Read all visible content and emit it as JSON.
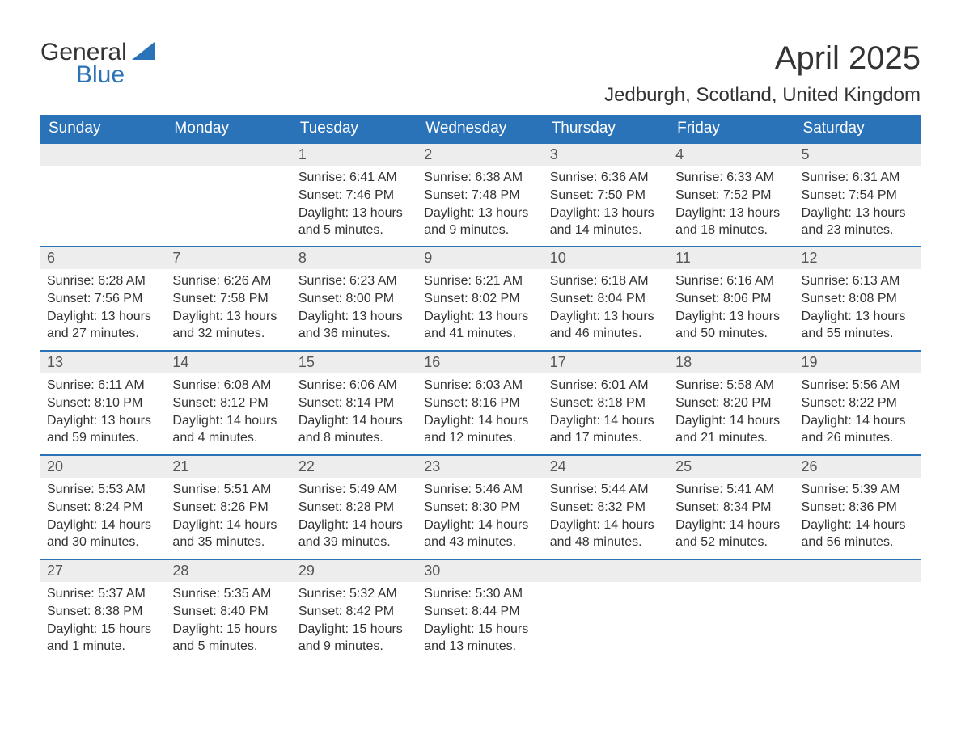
{
  "brand": {
    "line1": "General",
    "line2": "Blue",
    "logo_color": "#2b73b8"
  },
  "title": "April 2025",
  "location": "Jedburgh, Scotland, United Kingdom",
  "colors": {
    "header_bg": "#2b73b8",
    "header_text": "#ffffff",
    "daynum_bg": "#ededed",
    "row_sep": "#2b73b8",
    "body_text": "#333333",
    "page_bg": "#ffffff"
  },
  "fonts": {
    "body_size_pt": 12,
    "title_size_pt": 30,
    "location_size_pt": 18,
    "dayhead_size_pt": 14
  },
  "calendar": {
    "type": "table",
    "columns": [
      "Sunday",
      "Monday",
      "Tuesday",
      "Wednesday",
      "Thursday",
      "Friday",
      "Saturday"
    ],
    "weeks": [
      [
        null,
        null,
        {
          "n": "1",
          "sunrise": "6:41 AM",
          "sunset": "7:46 PM",
          "daylight": "13 hours and 5 minutes."
        },
        {
          "n": "2",
          "sunrise": "6:38 AM",
          "sunset": "7:48 PM",
          "daylight": "13 hours and 9 minutes."
        },
        {
          "n": "3",
          "sunrise": "6:36 AM",
          "sunset": "7:50 PM",
          "daylight": "13 hours and 14 minutes."
        },
        {
          "n": "4",
          "sunrise": "6:33 AM",
          "sunset": "7:52 PM",
          "daylight": "13 hours and 18 minutes."
        },
        {
          "n": "5",
          "sunrise": "6:31 AM",
          "sunset": "7:54 PM",
          "daylight": "13 hours and 23 minutes."
        }
      ],
      [
        {
          "n": "6",
          "sunrise": "6:28 AM",
          "sunset": "7:56 PM",
          "daylight": "13 hours and 27 minutes."
        },
        {
          "n": "7",
          "sunrise": "6:26 AM",
          "sunset": "7:58 PM",
          "daylight": "13 hours and 32 minutes."
        },
        {
          "n": "8",
          "sunrise": "6:23 AM",
          "sunset": "8:00 PM",
          "daylight": "13 hours and 36 minutes."
        },
        {
          "n": "9",
          "sunrise": "6:21 AM",
          "sunset": "8:02 PM",
          "daylight": "13 hours and 41 minutes."
        },
        {
          "n": "10",
          "sunrise": "6:18 AM",
          "sunset": "8:04 PM",
          "daylight": "13 hours and 46 minutes."
        },
        {
          "n": "11",
          "sunrise": "6:16 AM",
          "sunset": "8:06 PM",
          "daylight": "13 hours and 50 minutes."
        },
        {
          "n": "12",
          "sunrise": "6:13 AM",
          "sunset": "8:08 PM",
          "daylight": "13 hours and 55 minutes."
        }
      ],
      [
        {
          "n": "13",
          "sunrise": "6:11 AM",
          "sunset": "8:10 PM",
          "daylight": "13 hours and 59 minutes."
        },
        {
          "n": "14",
          "sunrise": "6:08 AM",
          "sunset": "8:12 PM",
          "daylight": "14 hours and 4 minutes."
        },
        {
          "n": "15",
          "sunrise": "6:06 AM",
          "sunset": "8:14 PM",
          "daylight": "14 hours and 8 minutes."
        },
        {
          "n": "16",
          "sunrise": "6:03 AM",
          "sunset": "8:16 PM",
          "daylight": "14 hours and 12 minutes."
        },
        {
          "n": "17",
          "sunrise": "6:01 AM",
          "sunset": "8:18 PM",
          "daylight": "14 hours and 17 minutes."
        },
        {
          "n": "18",
          "sunrise": "5:58 AM",
          "sunset": "8:20 PM",
          "daylight": "14 hours and 21 minutes."
        },
        {
          "n": "19",
          "sunrise": "5:56 AM",
          "sunset": "8:22 PM",
          "daylight": "14 hours and 26 minutes."
        }
      ],
      [
        {
          "n": "20",
          "sunrise": "5:53 AM",
          "sunset": "8:24 PM",
          "daylight": "14 hours and 30 minutes."
        },
        {
          "n": "21",
          "sunrise": "5:51 AM",
          "sunset": "8:26 PM",
          "daylight": "14 hours and 35 minutes."
        },
        {
          "n": "22",
          "sunrise": "5:49 AM",
          "sunset": "8:28 PM",
          "daylight": "14 hours and 39 minutes."
        },
        {
          "n": "23",
          "sunrise": "5:46 AM",
          "sunset": "8:30 PM",
          "daylight": "14 hours and 43 minutes."
        },
        {
          "n": "24",
          "sunrise": "5:44 AM",
          "sunset": "8:32 PM",
          "daylight": "14 hours and 48 minutes."
        },
        {
          "n": "25",
          "sunrise": "5:41 AM",
          "sunset": "8:34 PM",
          "daylight": "14 hours and 52 minutes."
        },
        {
          "n": "26",
          "sunrise": "5:39 AM",
          "sunset": "8:36 PM",
          "daylight": "14 hours and 56 minutes."
        }
      ],
      [
        {
          "n": "27",
          "sunrise": "5:37 AM",
          "sunset": "8:38 PM",
          "daylight": "15 hours and 1 minute."
        },
        {
          "n": "28",
          "sunrise": "5:35 AM",
          "sunset": "8:40 PM",
          "daylight": "15 hours and 5 minutes."
        },
        {
          "n": "29",
          "sunrise": "5:32 AM",
          "sunset": "8:42 PM",
          "daylight": "15 hours and 9 minutes."
        },
        {
          "n": "30",
          "sunrise": "5:30 AM",
          "sunset": "8:44 PM",
          "daylight": "15 hours and 13 minutes."
        },
        null,
        null,
        null
      ]
    ],
    "labels": {
      "sunrise": "Sunrise:",
      "sunset": "Sunset:",
      "daylight": "Daylight:"
    }
  }
}
